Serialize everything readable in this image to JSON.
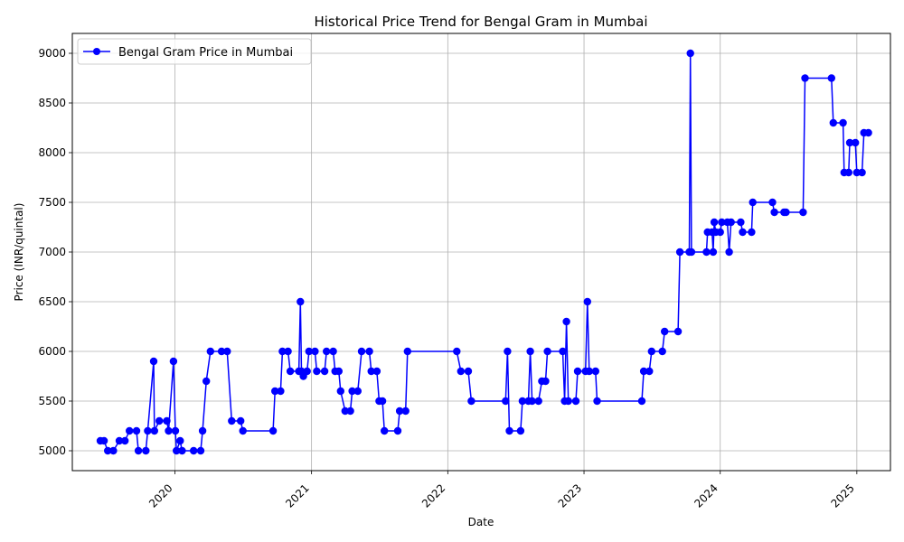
{
  "chart_data": {
    "type": "line",
    "title": "Historical Price Trend for Bengal Gram in Mumbai",
    "xlabel": "Date",
    "ylabel": "Price (INR/quintal)",
    "xlim": [
      "2019-04-01",
      "2025-04-01"
    ],
    "ylim": [
      4800,
      9200
    ],
    "x_ticks": [
      "2020",
      "2021",
      "2022",
      "2023",
      "2024",
      "2025"
    ],
    "y_ticks": [
      5000,
      5500,
      6000,
      6500,
      7000,
      7500,
      8000,
      8500,
      9000
    ],
    "grid": true,
    "legend_position": "top-left",
    "line_color": "#0000ff",
    "series": [
      {
        "name": "Bengal Gram Price in Mumbai",
        "points": [
          [
            "2019-06-15",
            5100
          ],
          [
            "2019-06-25",
            5100
          ],
          [
            "2019-07-05",
            5000
          ],
          [
            "2019-07-20",
            5000
          ],
          [
            "2019-08-05",
            5100
          ],
          [
            "2019-08-20",
            5100
          ],
          [
            "2019-09-01",
            5200
          ],
          [
            "2019-09-20",
            5200
          ],
          [
            "2019-09-25",
            5000
          ],
          [
            "2019-10-15",
            5000
          ],
          [
            "2019-10-20",
            5200
          ],
          [
            "2019-11-05",
            5900
          ],
          [
            "2019-11-07",
            5200
          ],
          [
            "2019-11-20",
            5300
          ],
          [
            "2019-12-10",
            5300
          ],
          [
            "2019-12-15",
            5200
          ],
          [
            "2019-12-28",
            5900
          ],
          [
            "2020-01-02",
            5200
          ],
          [
            "2020-01-05",
            5000
          ],
          [
            "2020-01-15",
            5100
          ],
          [
            "2020-01-20",
            5000
          ],
          [
            "2020-02-20",
            5000
          ],
          [
            "2020-03-10",
            5000
          ],
          [
            "2020-03-15",
            5200
          ],
          [
            "2020-03-25",
            5700
          ],
          [
            "2020-04-05",
            6000
          ],
          [
            "2020-05-05",
            6000
          ],
          [
            "2020-05-20",
            6000
          ],
          [
            "2020-06-01",
            5300
          ],
          [
            "2020-06-25",
            5300
          ],
          [
            "2020-07-01",
            5200
          ],
          [
            "2020-09-20",
            5200
          ],
          [
            "2020-09-25",
            5600
          ],
          [
            "2020-10-10",
            5600
          ],
          [
            "2020-10-15",
            6000
          ],
          [
            "2020-10-30",
            6000
          ],
          [
            "2020-11-05",
            5800
          ],
          [
            "2020-11-28",
            5800
          ],
          [
            "2020-12-02",
            6500
          ],
          [
            "2020-12-05",
            5800
          ],
          [
            "2020-12-10",
            5750
          ],
          [
            "2020-12-20",
            5800
          ],
          [
            "2020-12-25",
            6000
          ],
          [
            "2021-01-10",
            6000
          ],
          [
            "2021-01-15",
            5800
          ],
          [
            "2021-02-05",
            5800
          ],
          [
            "2021-02-10",
            6000
          ],
          [
            "2021-02-28",
            6000
          ],
          [
            "2021-03-05",
            5800
          ],
          [
            "2021-03-15",
            5800
          ],
          [
            "2021-03-20",
            5600
          ],
          [
            "2021-04-01",
            5400
          ],
          [
            "2021-04-15",
            5400
          ],
          [
            "2021-04-20",
            5600
          ],
          [
            "2021-05-05",
            5600
          ],
          [
            "2021-05-15",
            6000
          ],
          [
            "2021-06-05",
            6000
          ],
          [
            "2021-06-10",
            5800
          ],
          [
            "2021-06-25",
            5800
          ],
          [
            "2021-07-01",
            5500
          ],
          [
            "2021-07-10",
            5500
          ],
          [
            "2021-07-15",
            5200
          ],
          [
            "2021-08-20",
            5200
          ],
          [
            "2021-08-25",
            5400
          ],
          [
            "2021-09-10",
            5400
          ],
          [
            "2021-09-15",
            6000
          ],
          [
            "2022-01-25",
            6000
          ],
          [
            "2022-02-05",
            5800
          ],
          [
            "2022-02-25",
            5800
          ],
          [
            "2022-03-05",
            5500
          ],
          [
            "2022-06-05",
            5500
          ],
          [
            "2022-06-10",
            6000
          ],
          [
            "2022-06-15",
            5200
          ],
          [
            "2022-07-15",
            5200
          ],
          [
            "2022-07-20",
            5500
          ],
          [
            "2022-08-05",
            5500
          ],
          [
            "2022-08-10",
            6000
          ],
          [
            "2022-08-15",
            5500
          ],
          [
            "2022-09-01",
            5500
          ],
          [
            "2022-09-10",
            5700
          ],
          [
            "2022-09-20",
            5700
          ],
          [
            "2022-09-25",
            6000
          ],
          [
            "2022-11-05",
            6000
          ],
          [
            "2022-11-10",
            5500
          ],
          [
            "2022-11-15",
            6300
          ],
          [
            "2022-11-20",
            5500
          ],
          [
            "2022-12-10",
            5500
          ],
          [
            "2022-12-15",
            5800
          ],
          [
            "2023-01-05",
            5800
          ],
          [
            "2023-01-10",
            6500
          ],
          [
            "2023-01-15",
            5800
          ],
          [
            "2023-02-01",
            5800
          ],
          [
            "2023-02-05",
            5500
          ],
          [
            "2023-06-05",
            5500
          ],
          [
            "2023-06-10",
            5800
          ],
          [
            "2023-06-25",
            5800
          ],
          [
            "2023-07-01",
            6000
          ],
          [
            "2023-07-30",
            6000
          ],
          [
            "2023-08-05",
            6200
          ],
          [
            "2023-09-10",
            6200
          ],
          [
            "2023-09-15",
            7000
          ],
          [
            "2023-10-10",
            7000
          ],
          [
            "2023-10-13",
            9000
          ],
          [
            "2023-10-16",
            7000
          ],
          [
            "2023-11-25",
            7000
          ],
          [
            "2023-11-28",
            7200
          ],
          [
            "2023-12-10",
            7200
          ],
          [
            "2023-12-13",
            7000
          ],
          [
            "2023-12-16",
            7300
          ],
          [
            "2023-12-20",
            7200
          ],
          [
            "2024-01-01",
            7200
          ],
          [
            "2024-01-05",
            7300
          ],
          [
            "2024-01-20",
            7300
          ],
          [
            "2024-01-25",
            7000
          ],
          [
            "2024-01-30",
            7300
          ],
          [
            "2024-02-25",
            7300
          ],
          [
            "2024-03-01",
            7200
          ],
          [
            "2024-03-25",
            7200
          ],
          [
            "2024-03-28",
            7500
          ],
          [
            "2024-05-20",
            7500
          ],
          [
            "2024-05-25",
            7400
          ],
          [
            "2024-06-20",
            7400
          ],
          [
            "2024-06-25",
            7400
          ],
          [
            "2024-08-10",
            7400
          ],
          [
            "2024-08-15",
            8750
          ],
          [
            "2024-10-25",
            8750
          ],
          [
            "2024-10-30",
            8300
          ],
          [
            "2024-11-25",
            8300
          ],
          [
            "2024-11-28",
            7800
          ],
          [
            "2024-12-10",
            7800
          ],
          [
            "2024-12-13",
            8100
          ],
          [
            "2024-12-28",
            8100
          ],
          [
            "2025-01-01",
            7800
          ],
          [
            "2025-01-15",
            7800
          ],
          [
            "2025-01-20",
            8200
          ],
          [
            "2025-02-01",
            8200
          ]
        ]
      }
    ]
  }
}
